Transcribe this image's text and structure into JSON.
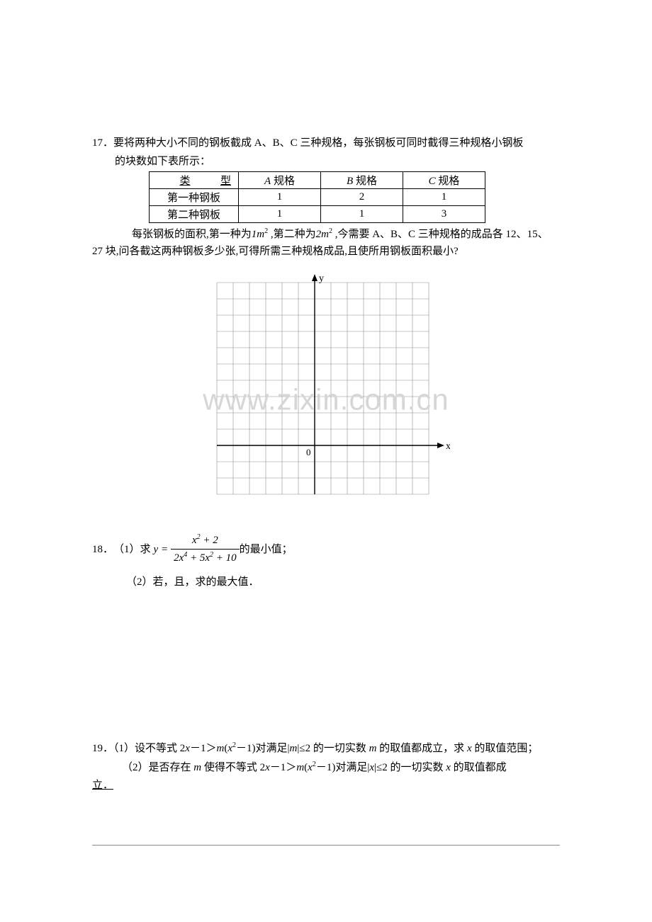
{
  "q17": {
    "number": "17．",
    "intro_line1": "要将两种大小不同的钢板截成 A、B、C 三种规格，每张钢板可同时截得三种规格小钢板",
    "intro_line2": "的块数如下表所示：",
    "table": {
      "header_type_lei": "类",
      "header_type_xing": "型",
      "header_a": "A 规格",
      "header_b": "B 规格",
      "header_c": "C 规格",
      "row1_label": "第一种钢板",
      "row1": [
        "1",
        "2",
        "1"
      ],
      "row2_label": "第二种钢板",
      "row2": [
        "1",
        "1",
        "3"
      ]
    },
    "after1_prefix": "每张钢板的面积,第一种为",
    "after1_m1": "1m",
    "after1_mid": " ,第二种为",
    "after1_m2": "2m",
    "after1_suffix": " ,今需要 A、B、C 三种规格的成品各 12、15、",
    "after2": "27 块,问各截这两种钢板多少张,可得所需三种规格成品,且使所用钢板面积最小?"
  },
  "grid": {
    "y_label": "y",
    "x_label": "x",
    "origin_label": "0",
    "cols": 13,
    "rows": 13,
    "cell": 23,
    "origin_col": 6,
    "origin_row": 10,
    "colors": {
      "grid_line": "#8e8e8e",
      "axis": "#000000",
      "bg": "#ffffff"
    }
  },
  "watermark_text": "www.zixin.com.cn",
  "q18": {
    "number": "18．",
    "part1_prefix": "（1）求 ",
    "part1_y_eq": "y = ",
    "frac_num": "x² + 2",
    "frac_den": "2x⁴ + 5x² + 10",
    "part1_suffix": " 的最小值；",
    "part2": "（2）若，且，求的最大值．"
  },
  "q19": {
    "number": "19．",
    "part1": "（1）设不等式 2x－1＞m(x²－1)对满足|m|≤2 的一切实数 m 的取值都成立，求 x 的取值范围；",
    "part2_a": "（2）是否存在 m 使得不等式 2x－1＞m(x²－1)对满足|x|≤2 的一切实数 x 的取值都成",
    "part2_b": "立．"
  },
  "styling": {
    "page_bg": "#ffffff",
    "text_color": "#000000",
    "body_font_size": 15,
    "watermark_color": "#d6d6d6",
    "watermark_font_size": 42
  }
}
